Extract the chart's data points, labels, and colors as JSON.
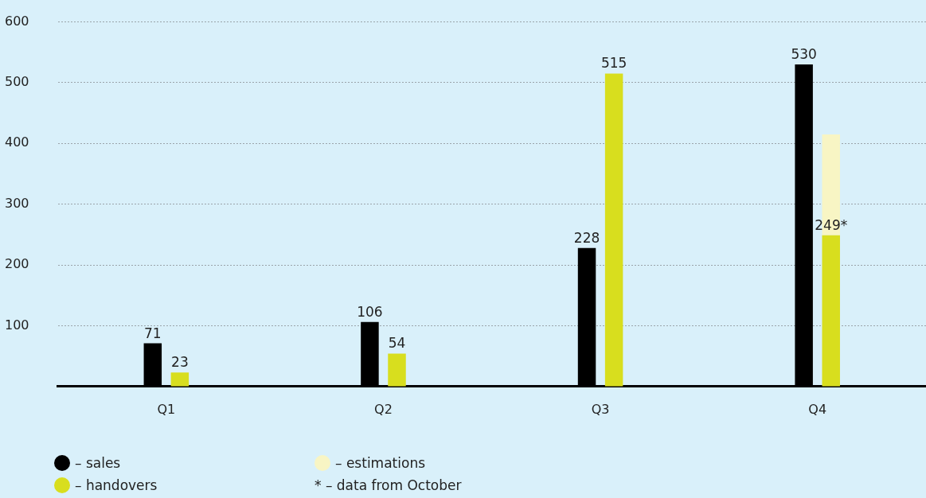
{
  "chart_data": {
    "type": "bar",
    "categories": [
      "Q1",
      "Q2",
      "Q3",
      "Q4"
    ],
    "series": [
      {
        "name": "– sales",
        "color": "#000000",
        "values": [
          71,
          106,
          228,
          530
        ],
        "value_labels": [
          "71",
          "106",
          "228",
          "530"
        ]
      },
      {
        "name": "– handovers",
        "color": "#d8de1e",
        "values": [
          23,
          54,
          515,
          249
        ],
        "value_labels": [
          "23",
          "54",
          "515",
          "249*"
        ]
      },
      {
        "name": "– estimations",
        "color": "#f8f5c4",
        "values": [
          null,
          null,
          null,
          166
        ],
        "base": [
          null,
          null,
          null,
          249
        ]
      }
    ],
    "ylim": [
      0,
      600
    ],
    "yticks": [
      100,
      200,
      300,
      400,
      500,
      600
    ],
    "grid": "y",
    "legend": "bottom left",
    "annotations": [
      "* – data from October"
    ]
  }
}
